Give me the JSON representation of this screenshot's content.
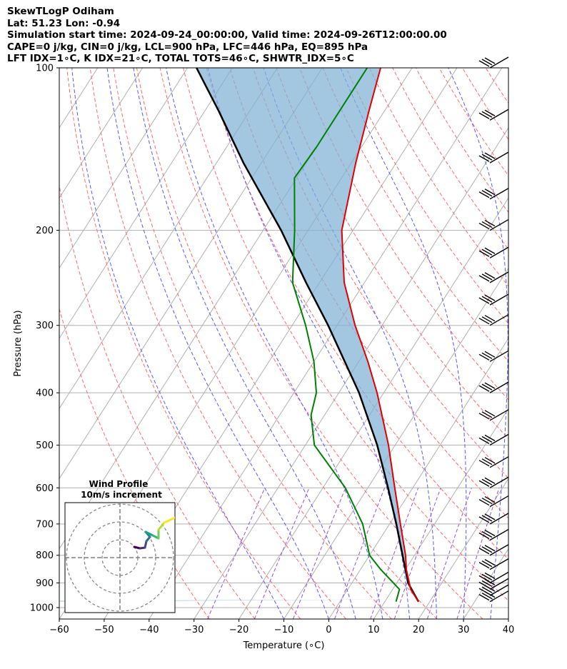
{
  "header": {
    "line1": "SkewTLogP Odiham",
    "line2": "Lat: 51.23   Lon: -0.94",
    "line3": "Simulation start time: 2024-09-24_00:00:00, Valid time: 2024-09-26T12:00:00.00",
    "line4": "CAPE=0 j/kg, CIN=0 j/kg, LCL=900 hPa, LFC=446 hPa, EQ=895 hPa",
    "line5": "LFT IDX=1∘C, K IDX=21∘C, TOTAL TOTS=46∘C, SHWTR_IDX=5∘C"
  },
  "chart_data": {
    "type": "skew-t log-p",
    "xlabel": "Temperature (∘C)",
    "ylabel": "Pressure (hPa)",
    "xlim": [
      -60,
      40
    ],
    "ylim": [
      1050,
      100
    ],
    "x_ticks": [
      "−60",
      "−50",
      "−40",
      "−30",
      "−20",
      "−10",
      "0",
      "10",
      "20",
      "30",
      "40"
    ],
    "y_ticks": [
      "1000",
      "900",
      "800",
      "700",
      "600",
      "500",
      "400",
      "300",
      "200",
      "100"
    ],
    "temperature_profile": {
      "color": "#e00000",
      "points": [
        {
          "p": 975,
          "t": 17.5
        },
        {
          "p": 925,
          "t": 14.0
        },
        {
          "p": 850,
          "t": 10.2
        },
        {
          "p": 800,
          "t": 8.0
        },
        {
          "p": 700,
          "t": 2.4
        },
        {
          "p": 600,
          "t": -4.0
        },
        {
          "p": 500,
          "t": -11.5
        },
        {
          "p": 400,
          "t": -21.5
        },
        {
          "p": 350,
          "t": -28.0
        },
        {
          "p": 300,
          "t": -36.0
        },
        {
          "p": 250,
          "t": -44.5
        },
        {
          "p": 200,
          "t": -52.5
        },
        {
          "p": 150,
          "t": -59.0
        },
        {
          "p": 120,
          "t": -63.5
        },
        {
          "p": 100,
          "t": -67.0
        }
      ]
    },
    "dewpoint_profile": {
      "color": "#008000",
      "points": [
        {
          "p": 975,
          "t": 12.5
        },
        {
          "p": 925,
          "t": 11.5
        },
        {
          "p": 850,
          "t": 4.5
        },
        {
          "p": 800,
          "t": 0.0
        },
        {
          "p": 700,
          "t": -6.0
        },
        {
          "p": 600,
          "t": -15.0
        },
        {
          "p": 500,
          "t": -28.0
        },
        {
          "p": 440,
          "t": -33.0
        },
        {
          "p": 400,
          "t": -35.0
        },
        {
          "p": 350,
          "t": -40.0
        },
        {
          "p": 300,
          "t": -47.0
        },
        {
          "p": 250,
          "t": -56.0
        },
        {
          "p": 200,
          "t": -63.0
        },
        {
          "p": 160,
          "t": -70.5
        },
        {
          "p": 140,
          "t": -70.0
        },
        {
          "p": 100,
          "t": -70.0
        }
      ]
    },
    "parcel_profile": {
      "color": "#000000",
      "points": [
        {
          "p": 975,
          "t": 17.5
        },
        {
          "p": 900,
          "t": 12.5
        },
        {
          "p": 850,
          "t": 10.0
        },
        {
          "p": 700,
          "t": 1.5
        },
        {
          "p": 600,
          "t": -5.5
        },
        {
          "p": 500,
          "t": -14.0
        },
        {
          "p": 400,
          "t": -25.5
        },
        {
          "p": 300,
          "t": -42.0
        },
        {
          "p": 250,
          "t": -53.0
        },
        {
          "p": 200,
          "t": -66.0
        },
        {
          "p": 150,
          "t": -84.0
        },
        {
          "p": 120,
          "t": -97.0
        },
        {
          "p": 100,
          "t": -108.0
        }
      ]
    },
    "cin_shading_color": "#7fb2d5",
    "wind_barbs_pressure": [
      975,
      950,
      925,
      900,
      850,
      800,
      750,
      700,
      650,
      600,
      550,
      500,
      450,
      400,
      350,
      300,
      275,
      250,
      225,
      200,
      175,
      150,
      125,
      100
    ],
    "inset": {
      "title": "Wind Profile",
      "subtitle": "10m/s increment"
    }
  }
}
